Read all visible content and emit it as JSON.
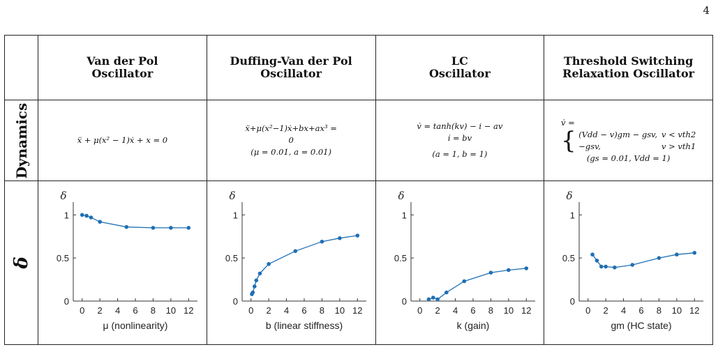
{
  "page_number": "4",
  "header_cols": [
    {
      "line1": "Van der Pol",
      "line2": "Oscillator"
    },
    {
      "line1": "Duffing-Van der Pol",
      "line2": "Oscillator"
    },
    {
      "line1": "LC",
      "line2": "Oscillator"
    },
    {
      "line1": "Threshold Switching",
      "line2": "Relaxation Oscillator"
    }
  ],
  "row_labels": {
    "dynamics": "Dynamics",
    "delta": "δ"
  },
  "dynamics": {
    "vdp": {
      "eq": "ẍ + μ(x² − 1)ẋ + x = 0"
    },
    "dvdp": {
      "eq1": "ẍ+μ(x²−1)ẋ+bx+ax³ =",
      "eq2": "0",
      "params": "(μ = 0.01,  a = 0.01)"
    },
    "lc": {
      "eq1": "v̇ = tanh(kv) − i − av",
      "eq2": "i̇ = bv",
      "params": "(a = 1,  b = 1)"
    },
    "ts": {
      "eq1": "v̇ =",
      "case1_expr": "(Vdd − v)gm − gsv,",
      "case1_cond": "v < vth2",
      "case2_expr": "−gsv,",
      "case2_cond": "v > vth1",
      "params": "(gs = 0.01,  Vdd = 1)"
    }
  },
  "chart_data": [
    {
      "type": "line",
      "ylabel": "δ",
      "xlabel": "μ (nonlinearity)",
      "x": [
        0,
        0.5,
        1,
        2,
        5,
        8,
        10,
        12
      ],
      "y": [
        1.0,
        0.99,
        0.97,
        0.92,
        0.86,
        0.85,
        0.85,
        0.85
      ],
      "xlim": [
        -1,
        13
      ],
      "ylim": [
        0,
        1.1
      ],
      "xticks": [
        0,
        2,
        4,
        6,
        8,
        10,
        12
      ],
      "yticks": [
        0,
        0.5,
        1
      ],
      "color": "#1f6fb4"
    },
    {
      "type": "line",
      "ylabel": "δ",
      "xlabel": "b  (linear stiffness)",
      "x": [
        0.1,
        0.2,
        0.4,
        0.6,
        1,
        2,
        5,
        8,
        10,
        12
      ],
      "y": [
        0.08,
        0.1,
        0.17,
        0.24,
        0.32,
        0.43,
        0.58,
        0.69,
        0.73,
        0.76
      ],
      "xlim": [
        -1,
        13
      ],
      "ylim": [
        0,
        1.1
      ],
      "xticks": [
        0,
        2,
        4,
        6,
        8,
        10,
        12
      ],
      "yticks": [
        0,
        0.5,
        1
      ],
      "color": "#1f6fb4"
    },
    {
      "type": "line",
      "ylabel": "δ",
      "xlabel": "k  (gain)",
      "x": [
        1,
        1.5,
        2,
        3,
        5,
        8,
        10,
        12
      ],
      "y": [
        0.02,
        0.04,
        0.02,
        0.1,
        0.23,
        0.33,
        0.36,
        0.38
      ],
      "xlim": [
        -1,
        13
      ],
      "ylim": [
        0,
        1.1
      ],
      "xticks": [
        0,
        2,
        4,
        6,
        8,
        10,
        12
      ],
      "yticks": [
        0,
        0.5,
        1
      ],
      "color": "#1f6fb4"
    },
    {
      "type": "line",
      "ylabel": "δ",
      "xlabel": "gm (HC state)",
      "x": [
        0.5,
        1,
        1.5,
        2,
        3,
        5,
        8,
        10,
        12
      ],
      "y": [
        0.54,
        0.47,
        0.4,
        0.4,
        0.39,
        0.42,
        0.5,
        0.54,
        0.56
      ],
      "xlim": [
        -1,
        13
      ],
      "ylim": [
        0,
        1.1
      ],
      "xticks": [
        0,
        2,
        4,
        6,
        8,
        10,
        12
      ],
      "yticks": [
        0,
        0.5,
        1
      ],
      "color": "#1f6fb4"
    }
  ]
}
